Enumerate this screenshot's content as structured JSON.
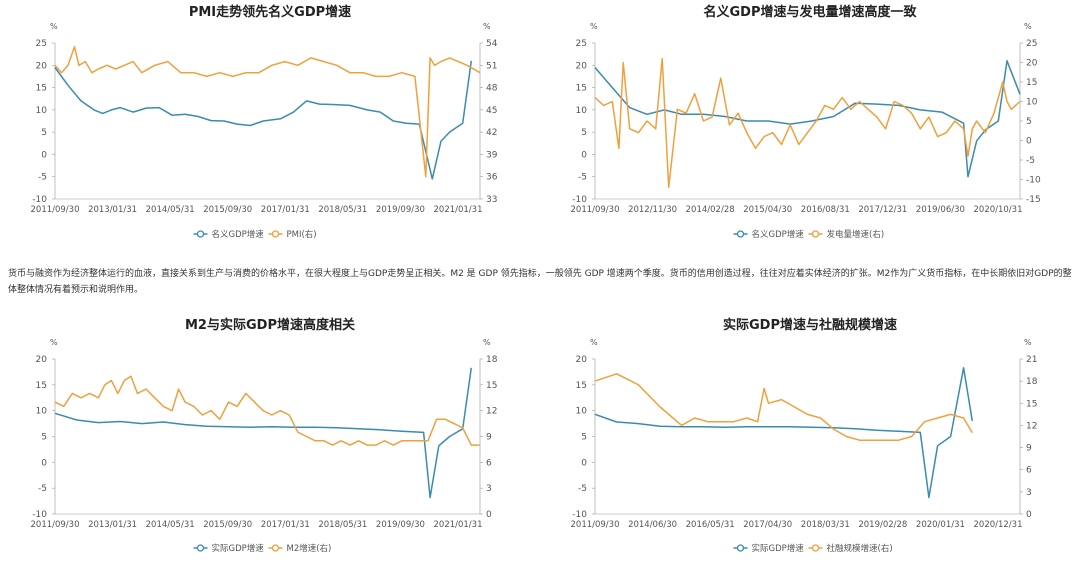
{
  "paragraph": "货币与融资作为经济整体运行的血液，直接关系到生产与消费的价格水平，在很大程度上与GDP走势呈正相关。M2 是 GDP 领先指标，一般领先 GDP 增速两个季度。货币的信用创造过程，往往对应着实体经济的扩张。M2作为广义货币指标，在中长期依旧对GDP的整体整体情况有着预示和说明作用。",
  "colors": {
    "blue": "#3a8bb0",
    "orange": "#f0a03c",
    "axis": "#999999",
    "grid": "#e8e8e8",
    "text": "#555555"
  },
  "chart_data": [
    {
      "type": "line",
      "title": "PMI走势领先名义GDP增速",
      "left_unit": "%",
      "right_unit": "%",
      "ylim": [
        -10,
        25
      ],
      "yticks": [
        25,
        20,
        15,
        10,
        5,
        0,
        -5,
        -10
      ],
      "y2lim": [
        33,
        54
      ],
      "y2ticks": [
        54,
        51,
        48,
        45,
        42,
        39,
        36,
        33
      ],
      "xticks": [
        "2011/09/30",
        "2013/01/31",
        "2014/05/31",
        "2015/09/30",
        "2017/01/31",
        "2018/05/31",
        "2019/09/30",
        "2021/01/31"
      ],
      "xmax": 9.8,
      "series": [
        {
          "name": "名义GDP增速",
          "axis": "left",
          "color": "#3a8bb0",
          "x": [
            0,
            0.3,
            0.6,
            0.9,
            1.1,
            1.3,
            1.5,
            1.8,
            2.1,
            2.4,
            2.7,
            3.0,
            3.3,
            3.6,
            3.9,
            4.2,
            4.5,
            4.8,
            5.2,
            5.5,
            5.8,
            6.1,
            6.4,
            6.8,
            7.2,
            7.5,
            7.8,
            8.1,
            8.4,
            8.7,
            8.9,
            9.1,
            9.4,
            9.6
          ],
          "y": [
            19.5,
            15.5,
            12,
            10,
            9.2,
            10,
            10.5,
            9.5,
            10.4,
            10.5,
            8.8,
            9,
            8.5,
            7.6,
            7.5,
            6.8,
            6.5,
            7.5,
            8,
            9.5,
            12,
            11.3,
            11.2,
            11,
            10,
            9.5,
            7.5,
            7,
            6.8,
            -5.5,
            3,
            5,
            7,
            21
          ]
        },
        {
          "name": "PMI(右)",
          "axis": "right",
          "color": "#f0a03c",
          "x": [
            0,
            0.15,
            0.3,
            0.45,
            0.55,
            0.7,
            0.85,
            1.0,
            1.2,
            1.4,
            1.6,
            1.8,
            2.0,
            2.3,
            2.6,
            2.9,
            3.2,
            3.5,
            3.8,
            4.1,
            4.4,
            4.7,
            5.0,
            5.3,
            5.6,
            5.9,
            6.2,
            6.5,
            6.8,
            7.1,
            7.4,
            7.7,
            8.0,
            8.3,
            8.55,
            8.65,
            8.75,
            8.9,
            9.1,
            9.3,
            9.5,
            9.8
          ],
          "y": [
            51,
            50,
            51,
            53.5,
            51,
            51.5,
            50,
            50.5,
            51,
            50.5,
            51,
            51.5,
            50,
            51,
            51.5,
            50,
            50,
            49.5,
            50,
            49.5,
            50,
            50,
            51,
            51.5,
            51,
            52,
            51.5,
            51,
            50,
            50,
            49.5,
            49.5,
            50,
            49.5,
            36,
            52,
            51,
            51.5,
            52,
            51.5,
            51,
            50
          ]
        }
      ]
    },
    {
      "type": "line",
      "title": "名义GDP增速与发电量增速高度一致",
      "left_unit": "%",
      "right_unit": "%",
      "ylim": [
        -10,
        25
      ],
      "yticks": [
        25,
        20,
        15,
        10,
        5,
        0,
        -5,
        -10
      ],
      "y2lim": [
        -15,
        25
      ],
      "y2ticks": [
        25,
        20,
        15,
        10,
        5,
        0,
        -5,
        -10,
        -15
      ],
      "xticks": [
        "2011/09/30",
        "2012/11/30",
        "2014/02/28",
        "2015/04/30",
        "2016/08/31",
        "2017/12/31",
        "2019/06/30",
        "2020/10/31"
      ],
      "xmax": 9.8,
      "series": [
        {
          "name": "名义GDP增速",
          "axis": "left",
          "color": "#3a8bb0",
          "x": [
            0,
            0.4,
            0.8,
            1.2,
            1.6,
            2.0,
            2.5,
            3.0,
            3.5,
            4.0,
            4.5,
            5.0,
            5.5,
            6.0,
            6.5,
            7.0,
            7.5,
            8.0,
            8.5,
            8.6,
            8.8,
            9.0,
            9.3,
            9.5,
            9.8
          ],
          "y": [
            19.5,
            15,
            10.5,
            9,
            10,
            9,
            9,
            8.5,
            7.5,
            7.5,
            6.8,
            7.5,
            8.5,
            11.5,
            11.3,
            11,
            10,
            9.5,
            7,
            -5,
            3,
            5.5,
            7.5,
            21,
            13.5
          ]
        },
        {
          "name": "发电量增速(右)",
          "axis": "right",
          "color": "#f0a03c",
          "x": [
            0,
            0.2,
            0.4,
            0.55,
            0.65,
            0.8,
            1.0,
            1.2,
            1.4,
            1.55,
            1.7,
            1.9,
            2.1,
            2.3,
            2.5,
            2.7,
            2.9,
            3.1,
            3.3,
            3.5,
            3.7,
            3.9,
            4.1,
            4.3,
            4.5,
            4.7,
            4.9,
            5.1,
            5.3,
            5.5,
            5.7,
            5.9,
            6.1,
            6.3,
            6.5,
            6.7,
            6.9,
            7.1,
            7.3,
            7.5,
            7.7,
            7.9,
            8.1,
            8.3,
            8.5,
            8.6,
            8.7,
            8.8,
            9.0,
            9.2,
            9.4,
            9.5,
            9.6,
            9.8
          ],
          "y": [
            11,
            9,
            10,
            -2,
            20,
            3,
            2,
            5,
            3,
            21,
            -12,
            8,
            7,
            12,
            5,
            6,
            16,
            4,
            7,
            2,
            -2,
            1,
            2,
            -1,
            4,
            -1,
            2,
            5,
            9,
            8,
            11,
            8,
            10,
            8,
            6,
            3,
            10,
            9,
            7,
            3,
            6,
            1,
            2,
            5,
            3,
            -4,
            3,
            5,
            2,
            7,
            15,
            10,
            8,
            10
          ]
        }
      ]
    },
    {
      "type": "line",
      "title": "M2与实际GDP增速高度相关",
      "left_unit": "%",
      "right_unit": "%",
      "ylim": [
        -10,
        20
      ],
      "yticks": [
        20,
        15,
        10,
        5,
        0,
        -5,
        -10
      ],
      "y2lim": [
        0,
        18
      ],
      "y2ticks": [
        18,
        15,
        12,
        9,
        6,
        3,
        0
      ],
      "xticks": [
        "2011/09/30",
        "2013/01/31",
        "2014/05/31",
        "2015/09/30",
        "2017/01/31",
        "2018/05/31",
        "2019/09/30",
        "2021/01/31"
      ],
      "xmax": 9.8,
      "series": [
        {
          "name": "实际GDP增速",
          "axis": "left",
          "color": "#3a8bb0",
          "x": [
            0,
            0.5,
            1.0,
            1.5,
            2.0,
            2.5,
            3.0,
            3.5,
            4.0,
            4.5,
            5.0,
            5.5,
            6.0,
            6.5,
            7.0,
            7.5,
            8.0,
            8.5,
            8.65,
            8.85,
            9.1,
            9.4,
            9.6
          ],
          "y": [
            9.5,
            8.2,
            7.7,
            7.9,
            7.5,
            7.8,
            7.3,
            7.0,
            6.9,
            6.8,
            6.9,
            6.8,
            6.8,
            6.7,
            6.5,
            6.3,
            6.0,
            5.8,
            -6.8,
            3.2,
            5.0,
            6.5,
            18.3
          ]
        },
        {
          "name": "M2增速(右)",
          "axis": "right",
          "color": "#f0a03c",
          "x": [
            0,
            0.2,
            0.4,
            0.6,
            0.8,
            1.0,
            1.15,
            1.3,
            1.45,
            1.6,
            1.75,
            1.9,
            2.1,
            2.3,
            2.5,
            2.7,
            2.85,
            3.0,
            3.2,
            3.4,
            3.6,
            3.8,
            4.0,
            4.2,
            4.4,
            4.6,
            4.8,
            5.0,
            5.2,
            5.4,
            5.6,
            5.8,
            6.0,
            6.2,
            6.4,
            6.6,
            6.8,
            7.0,
            7.2,
            7.4,
            7.6,
            7.8,
            8.0,
            8.2,
            8.4,
            8.6,
            8.8,
            9.0,
            9.2,
            9.4,
            9.6,
            9.8
          ],
          "y": [
            13,
            12.5,
            14,
            13.5,
            14,
            13.5,
            15,
            15.5,
            14,
            15.5,
            16,
            14,
            14.5,
            13.5,
            12.5,
            12,
            14.5,
            13,
            12.5,
            11.5,
            12,
            11,
            13,
            12.5,
            14,
            13,
            12,
            11.5,
            12,
            11.5,
            9.5,
            9,
            8.5,
            8.5,
            8,
            8.5,
            8,
            8.5,
            8,
            8,
            8.5,
            8,
            8.5,
            8.5,
            8.5,
            8.5,
            11,
            11,
            10.5,
            10,
            8,
            8
          ]
        }
      ]
    },
    {
      "type": "line",
      "title": "实际GDP增速与社融规模增速",
      "left_unit": "%",
      "right_unit": "%",
      "ylim": [
        -10,
        20
      ],
      "yticks": [
        20,
        15,
        10,
        5,
        0,
        -5,
        -10
      ],
      "y2lim": [
        0,
        21
      ],
      "y2ticks": [
        21,
        18,
        15,
        12,
        9,
        6,
        3,
        0
      ],
      "xticks": [
        "2011/09/30",
        "2014/06/30",
        "2016/05/31",
        "2017/04/30",
        "2018/03/31",
        "2019/02/28",
        "2020/01/31",
        "2020/12/31"
      ],
      "xmax": 9.8,
      "series": [
        {
          "name": "实际GDP增速",
          "axis": "left",
          "color": "#3a8bb0",
          "x": [
            0,
            0.5,
            1.0,
            1.5,
            2.0,
            2.5,
            3.0,
            3.5,
            4.0,
            4.5,
            5.0,
            5.5,
            6.0,
            6.5,
            7.0,
            7.5,
            7.7,
            7.9,
            8.2,
            8.5,
            8.7
          ],
          "y": [
            9.3,
            7.8,
            7.5,
            7.0,
            6.9,
            6.9,
            6.8,
            6.9,
            6.9,
            6.9,
            6.8,
            6.7,
            6.5,
            6.2,
            6.0,
            5.8,
            -6.8,
            3.2,
            5.0,
            18.3,
            8.0
          ]
        },
        {
          "name": "社融规模增速(右)",
          "axis": "right",
          "color": "#f0a03c",
          "x": [
            0,
            0.5,
            1.0,
            1.5,
            2.0,
            2.3,
            2.6,
            2.9,
            3.2,
            3.5,
            3.75,
            3.9,
            4.0,
            4.3,
            4.6,
            4.9,
            5.2,
            5.5,
            5.8,
            6.1,
            6.4,
            6.7,
            7.0,
            7.3,
            7.6,
            7.9,
            8.2,
            8.5,
            8.7
          ],
          "y": [
            18,
            19,
            17.5,
            14.5,
            12,
            13,
            12.5,
            12.5,
            12.5,
            13,
            12.5,
            17,
            15,
            15.5,
            14.5,
            13.5,
            13,
            11.5,
            10.5,
            10,
            10,
            10,
            10,
            10.5,
            12.5,
            13,
            13.5,
            13,
            11
          ]
        }
      ]
    }
  ]
}
